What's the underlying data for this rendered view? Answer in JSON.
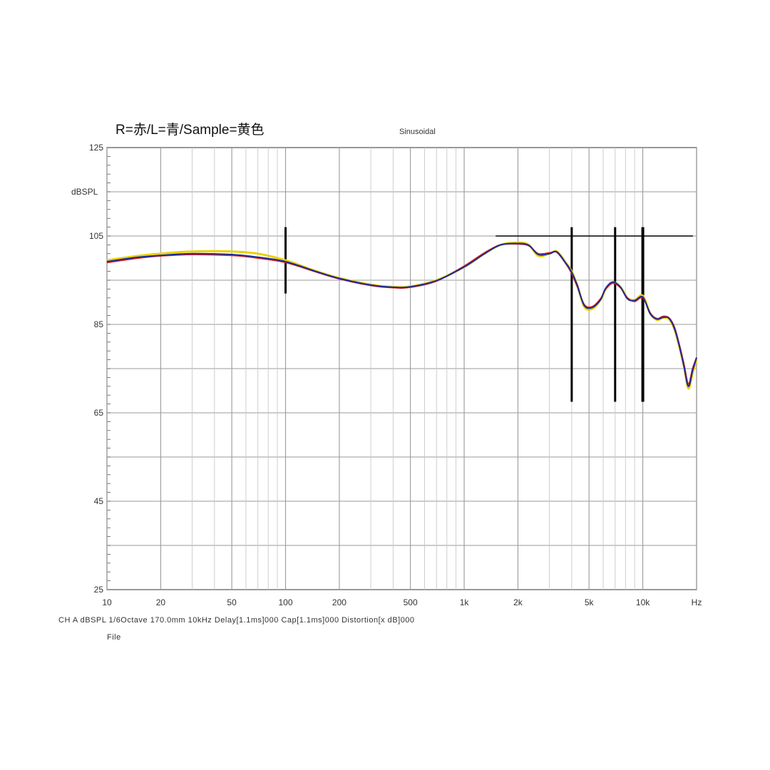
{
  "chart_data": {
    "type": "line",
    "title": "R=赤/L=青/Sample=黄色",
    "subtitle": "Sinusoidal",
    "ylabel": "dBSPL",
    "xlabel": "Hz",
    "x_scale": "log",
    "xlim": [
      10,
      20000
    ],
    "ylim": [
      25,
      125
    ],
    "y_ticks": [
      {
        "value": 125,
        "label": "125"
      },
      {
        "value": 105,
        "label": "105"
      },
      {
        "value": 85,
        "label": "85"
      },
      {
        "value": 65,
        "label": "65"
      },
      {
        "value": 45,
        "label": "45"
      },
      {
        "value": 25,
        "label": "25"
      }
    ],
    "x_ticks": [
      {
        "value": 10,
        "label": "10"
      },
      {
        "value": 20,
        "label": "20"
      },
      {
        "value": 50,
        "label": "50"
      },
      {
        "value": 100,
        "label": "100"
      },
      {
        "value": 200,
        "label": "200"
      },
      {
        "value": 500,
        "label": "500"
      },
      {
        "value": 1000,
        "label": "1k"
      },
      {
        "value": 2000,
        "label": "2k"
      },
      {
        "value": 5000,
        "label": "5k"
      },
      {
        "value": 10000,
        "label": "10k"
      },
      {
        "value": 20000,
        "label": "Hz"
      }
    ],
    "grid": true,
    "series": [
      {
        "color": "#e8d200",
        "x": [
          10,
          15,
          20,
          30,
          50,
          70,
          100,
          150,
          200,
          300,
          400,
          500,
          700,
          1000,
          1300,
          1600,
          2000,
          2300,
          2600,
          3000,
          3300,
          3700,
          4000,
          4300,
          4700,
          5200,
          5800,
          6200,
          6800,
          7500,
          8200,
          9000,
          10000,
          11000,
          12000,
          13000,
          14000,
          15000,
          16000,
          17000,
          18000,
          19000,
          20000
        ],
        "y": [
          99.5,
          100.5,
          101,
          101.5,
          101.5,
          101,
          99.5,
          97,
          95.5,
          94,
          93.5,
          93.6,
          95,
          98,
          101,
          103,
          103.5,
          103,
          100.5,
          101,
          101.5,
          99,
          97,
          93.8,
          89,
          88.5,
          90.5,
          93,
          94.5,
          93.5,
          91,
          90.5,
          91.5,
          87.5,
          86,
          86.5,
          86.2,
          84,
          80,
          75.5,
          70.5,
          74,
          77
        ]
      },
      {
        "color": "#e02020",
        "x": [
          10,
          15,
          20,
          30,
          50,
          70,
          100,
          150,
          200,
          300,
          400,
          500,
          700,
          1000,
          1300,
          1600,
          2000,
          2300,
          2600,
          3000,
          3300,
          3700,
          4000,
          4300,
          4700,
          5200,
          5800,
          6200,
          6800,
          7500,
          8200,
          9000,
          10000,
          11000,
          12000,
          13000,
          14000,
          15000,
          16000,
          17000,
          18000,
          19000,
          20000
        ],
        "y": [
          99,
          100,
          100.5,
          100.8,
          100.6,
          100,
          99,
          96.8,
          95.3,
          93.8,
          93.3,
          93.4,
          94.8,
          98.2,
          101.2,
          103,
          103.2,
          102.8,
          101,
          101.2,
          101.3,
          98.8,
          96.5,
          93.5,
          89.5,
          89,
          90.8,
          93,
          94.3,
          93.3,
          91,
          90.2,
          91,
          87.6,
          86.3,
          86.8,
          86.5,
          84.5,
          80.5,
          76,
          71.5,
          75,
          77.5
        ]
      },
      {
        "color": "#1a2a9a",
        "x": [
          10,
          15,
          20,
          30,
          50,
          70,
          100,
          150,
          200,
          300,
          400,
          500,
          700,
          1000,
          1300,
          1600,
          2000,
          2300,
          2600,
          3000,
          3300,
          3700,
          4000,
          4300,
          4700,
          5200,
          5800,
          6200,
          6800,
          7500,
          8200,
          9000,
          10000,
          11000,
          12000,
          13000,
          14000,
          15000,
          16000,
          17000,
          18000,
          19000,
          20000
        ],
        "y": [
          99.2,
          100.2,
          100.6,
          101,
          100.8,
          100.2,
          99.2,
          96.9,
          95.4,
          93.9,
          93.4,
          93.5,
          94.9,
          98,
          101,
          103,
          103.3,
          102.9,
          100.8,
          101,
          101.4,
          98.9,
          96.8,
          93.8,
          89.3,
          88.8,
          90.6,
          93.2,
          94.6,
          93.4,
          90.8,
          90.4,
          91.2,
          87.4,
          86.2,
          86.6,
          86.4,
          84.2,
          80.2,
          75.5,
          71,
          74.5,
          77.5
        ]
      }
    ],
    "cursors": [
      100,
      4000,
      7000,
      10000
    ]
  },
  "status_bar": {
    "text": "CH A dBSPL  1/6Octave  170.0mm  10kHz  Delay[1.1ms]000  Cap[1.1ms]000  Distortion[x dB]000",
    "file_label": "File"
  },
  "colors": {
    "grid": "#9a9a9a",
    "grid_light": "#c8c8c8",
    "frame": "#555555",
    "cursor": "#000000"
  }
}
